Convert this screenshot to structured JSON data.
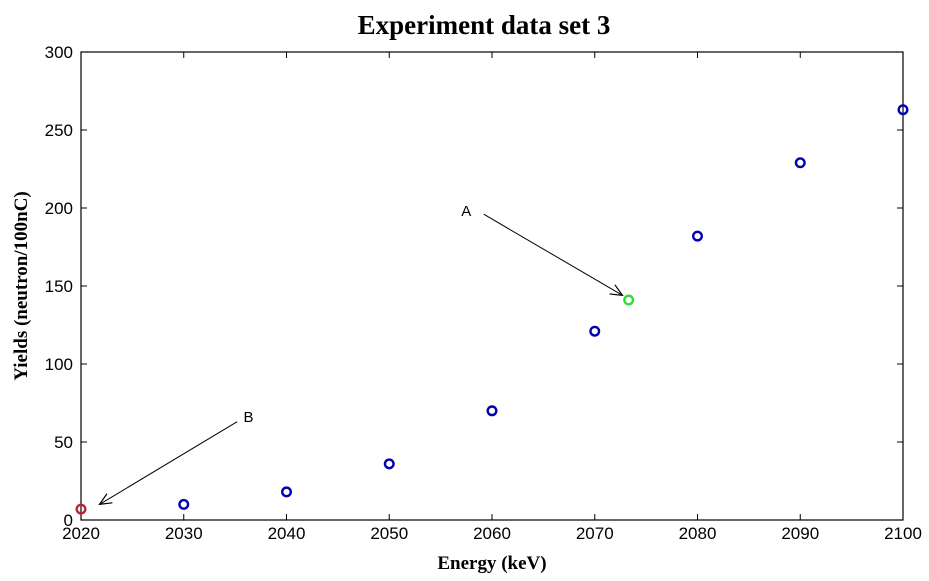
{
  "chart_data": {
    "type": "scatter",
    "title": "Experiment data set 3",
    "xlabel": "Energy (keV)",
    "ylabel": "Yields (neutron/100nC)",
    "xlim": [
      2020,
      2100
    ],
    "ylim": [
      0,
      300
    ],
    "xticks": [
      2020,
      2030,
      2040,
      2050,
      2060,
      2070,
      2080,
      2090,
      2100
    ],
    "yticks": [
      0,
      50,
      100,
      150,
      200,
      250,
      300
    ],
    "grid": false,
    "series": [
      {
        "color": "#0000b4",
        "points": [
          {
            "x": 2030,
            "y": 10
          },
          {
            "x": 2040,
            "y": 18
          },
          {
            "x": 2050,
            "y": 36
          },
          {
            "x": 2060,
            "y": 70
          },
          {
            "x": 2070,
            "y": 121
          },
          {
            "x": 2080,
            "y": 182
          },
          {
            "x": 2090,
            "y": 229
          },
          {
            "x": 2100,
            "y": 263
          }
        ]
      },
      {
        "color": "#33dd33",
        "points": [
          {
            "x": 2073.3,
            "y": 141
          }
        ]
      },
      {
        "color": "#c0203a",
        "points": [
          {
            "x": 2020,
            "y": 7
          }
        ]
      }
    ],
    "annotations": [
      {
        "text": "A",
        "label_at": {
          "x": 2057.5,
          "y": 198
        },
        "arrow_from": {
          "x": 2059.2,
          "y": 196
        },
        "arrow_to": {
          "x": 2072.7,
          "y": 144
        }
      },
      {
        "text": "B",
        "label_at": {
          "x": 2036.3,
          "y": 66
        },
        "arrow_from": {
          "x": 2035.2,
          "y": 63
        },
        "arrow_to": {
          "x": 2021.8,
          "y": 10
        }
      }
    ]
  }
}
